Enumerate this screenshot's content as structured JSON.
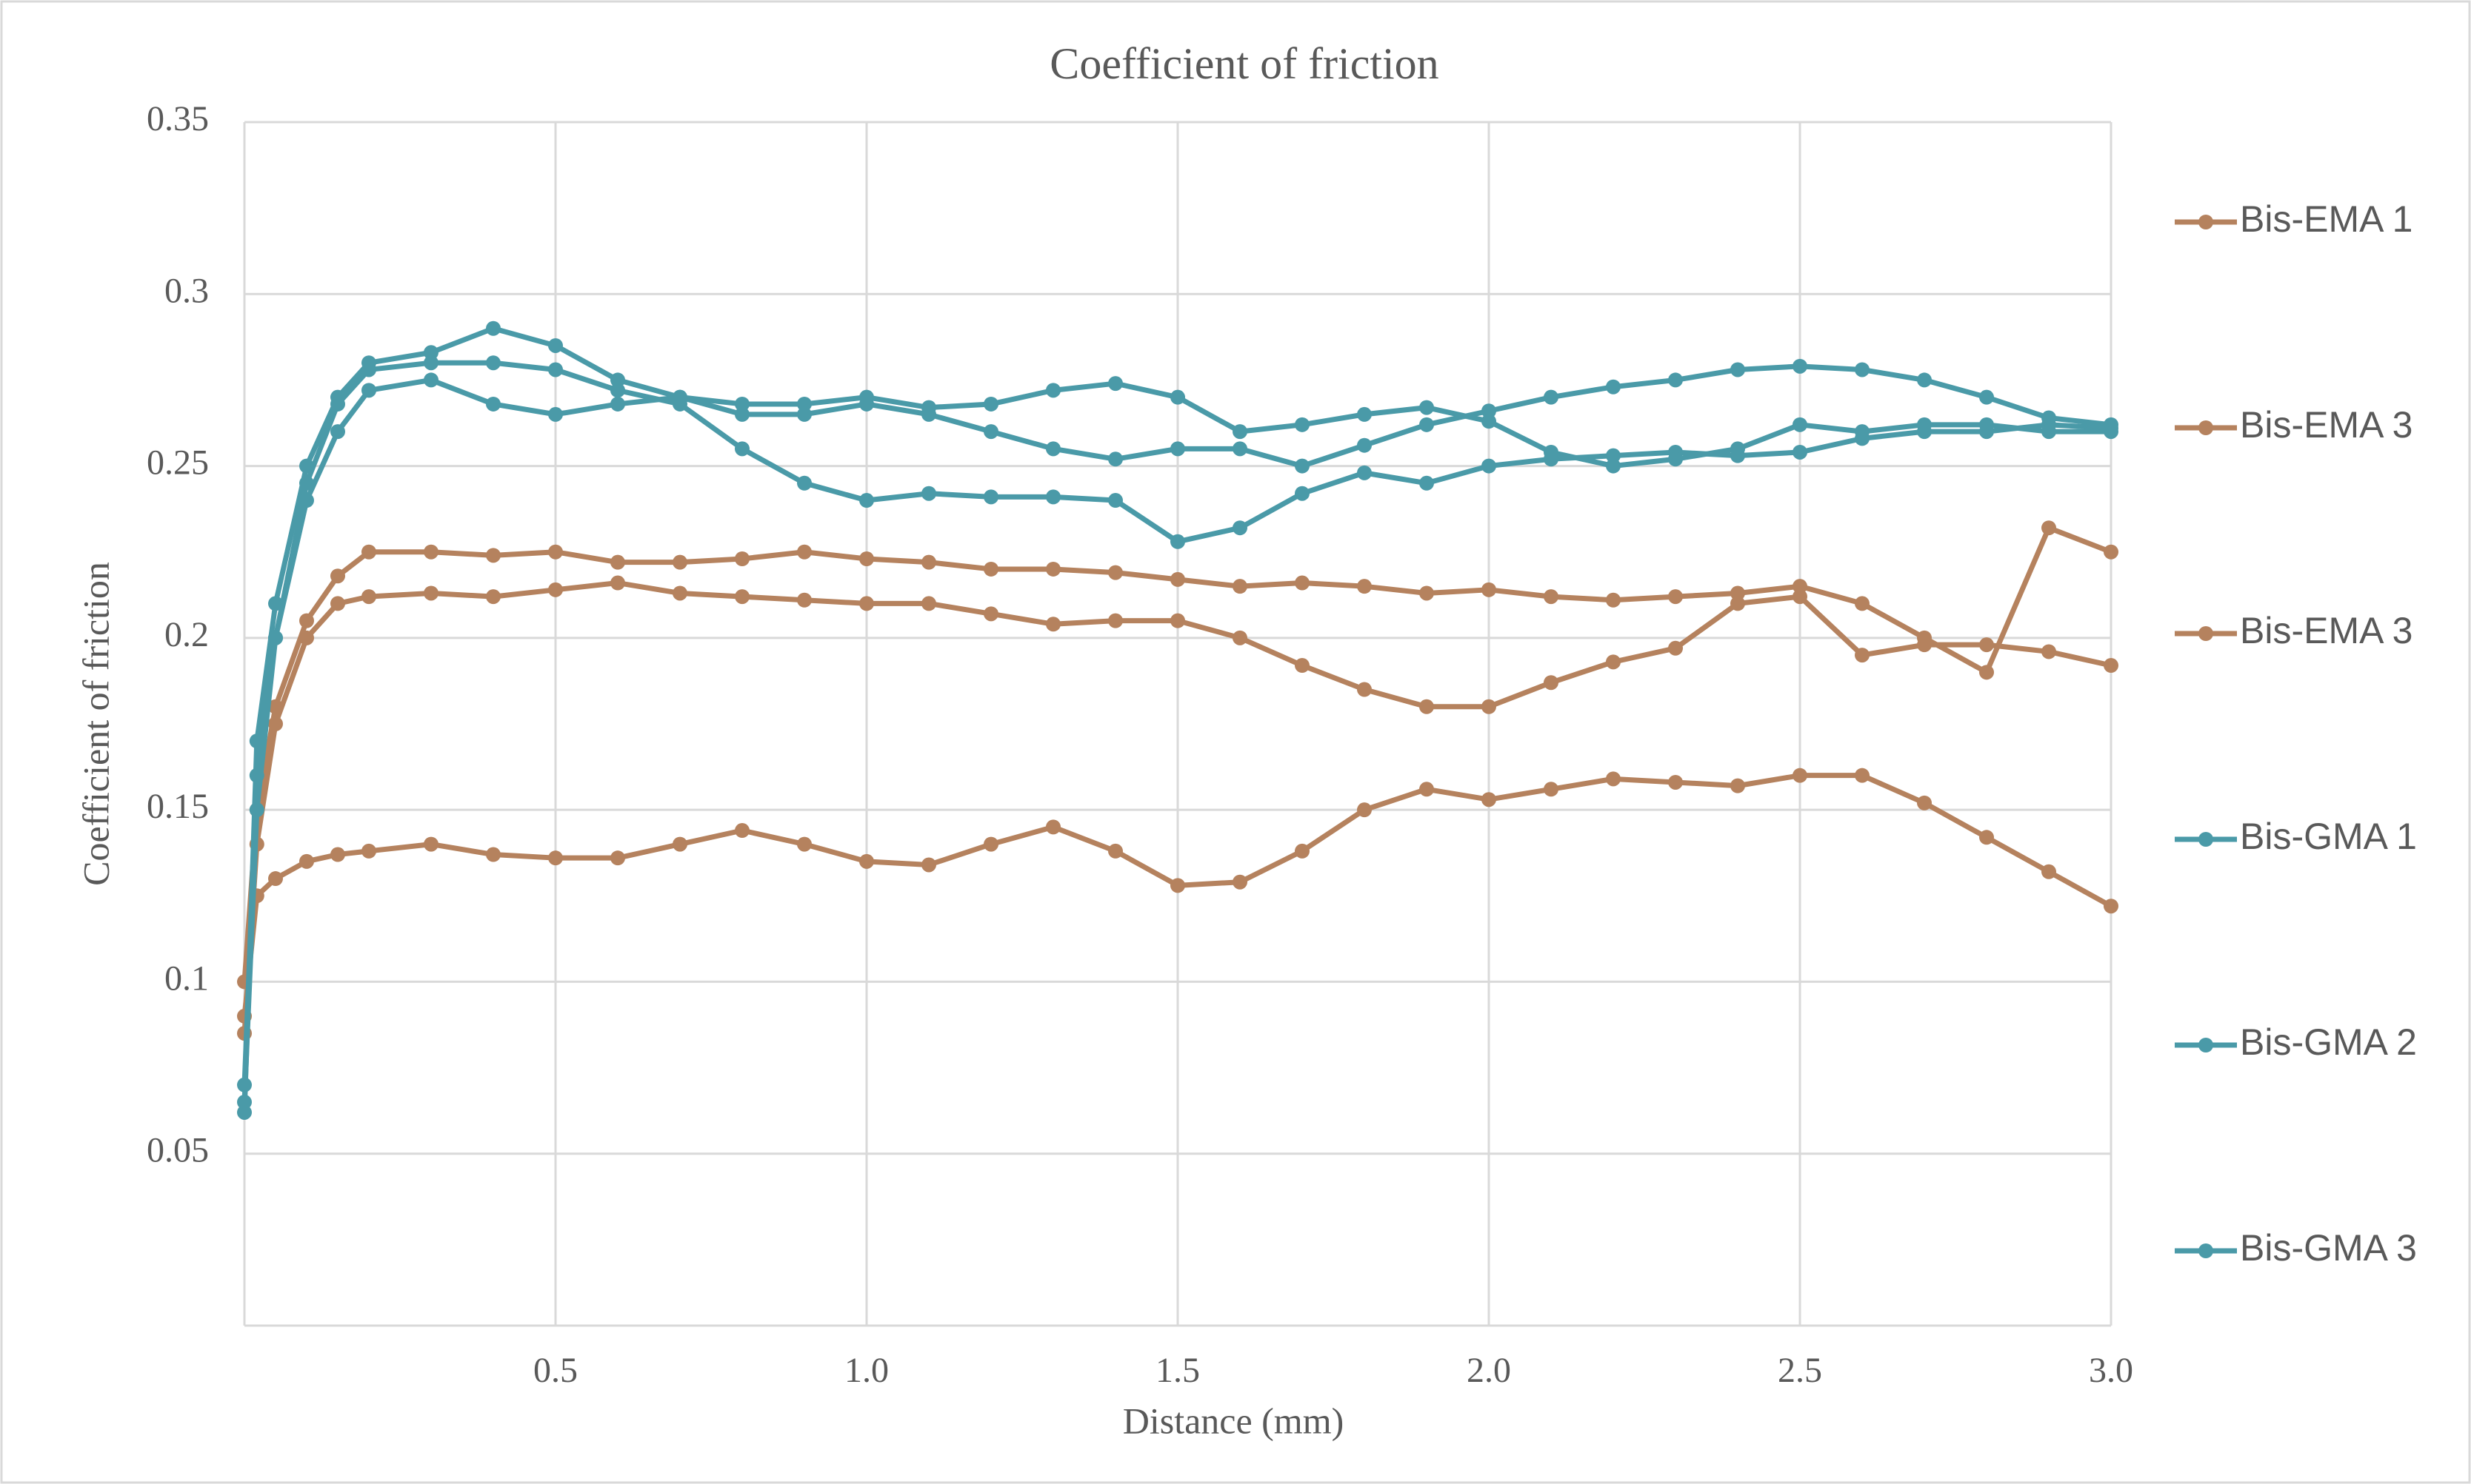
{
  "chart_data": {
    "type": "line",
    "title": "Coefficient of friction",
    "x_label": "Distance (mm)",
    "y_label": "Coefficient of friction",
    "xlim": [
      0,
      3
    ],
    "ylim": [
      0,
      0.35
    ],
    "xticks": [
      0.5,
      {
        "value": 1,
        "label": "1.0"
      },
      1.5,
      {
        "value": 2,
        "label": "2.0"
      },
      2.5,
      {
        "value": 3,
        "label": "3.0"
      }
    ],
    "yticks": [
      0.05,
      0.1,
      0.15,
      0.2,
      0.25,
      0.3,
      0.35
    ],
    "grid": true,
    "legend": "right",
    "x": [
      0,
      0.02,
      0.05,
      0.1,
      0.15,
      0.2,
      0.3,
      0.4,
      0.5,
      0.6,
      0.7,
      0.8,
      0.9,
      1.0,
      1.1,
      1.2,
      1.3,
      1.4,
      1.5,
      1.6,
      1.7,
      1.8,
      1.9,
      2.0,
      2.1,
      2.2,
      2.3,
      2.4,
      2.5,
      2.6,
      2.7,
      2.8,
      2.9,
      3.0
    ],
    "series": [
      {
        "name": "Bis-EMA 1",
        "color": "#b5825e",
        "values": [
          0.09,
          0.125,
          0.13,
          0.135,
          0.137,
          0.138,
          0.14,
          0.137,
          0.136,
          0.136,
          0.14,
          0.144,
          0.14,
          0.135,
          0.134,
          0.14,
          0.145,
          0.138,
          0.128,
          0.129,
          0.138,
          0.15,
          0.156,
          0.153,
          0.156,
          0.159,
          0.158,
          0.157,
          0.16,
          0.16,
          0.152,
          0.142,
          0.132,
          0.122
        ]
      },
      {
        "name": "Bis-EMA 3",
        "color": "#b5825e",
        "values": [
          0.1,
          0.15,
          0.18,
          0.205,
          0.218,
          0.225,
          0.225,
          0.224,
          0.225,
          0.222,
          0.222,
          0.223,
          0.225,
          0.223,
          0.222,
          0.22,
          0.22,
          0.219,
          0.217,
          0.215,
          0.216,
          0.215,
          0.213,
          0.214,
          0.212,
          0.211,
          0.212,
          0.213,
          0.215,
          0.21,
          0.2,
          0.19,
          0.232,
          0.225
        ]
      },
      {
        "name": "Bis-EMA 3",
        "color": "#b5825e",
        "values": [
          0.085,
          0.14,
          0.175,
          0.2,
          0.21,
          0.212,
          0.213,
          0.212,
          0.214,
          0.216,
          0.213,
          0.212,
          0.211,
          0.21,
          0.21,
          0.207,
          0.204,
          0.205,
          0.205,
          0.2,
          0.192,
          0.185,
          0.18,
          0.18,
          0.187,
          0.193,
          0.197,
          0.21,
          0.212,
          0.195,
          0.198,
          0.198,
          0.196,
          0.192
        ]
      },
      {
        "name": "Bis-GMA 1",
        "color": "#4a9aa8",
        "values": [
          0.062,
          0.17,
          0.21,
          0.25,
          0.27,
          0.28,
          0.283,
          0.29,
          0.285,
          0.275,
          0.27,
          0.265,
          0.265,
          0.268,
          0.265,
          0.26,
          0.255,
          0.252,
          0.255,
          0.255,
          0.25,
          0.256,
          0.262,
          0.266,
          0.27,
          0.273,
          0.275,
          0.278,
          0.279,
          0.278,
          0.275,
          0.27,
          0.264,
          0.262
        ]
      },
      {
        "name": "Bis-GMA 2",
        "color": "#4a9aa8",
        "values": [
          0.07,
          0.16,
          0.2,
          0.245,
          0.268,
          0.278,
          0.28,
          0.28,
          0.278,
          0.272,
          0.268,
          0.255,
          0.245,
          0.24,
          0.242,
          0.241,
          0.241,
          0.24,
          0.228,
          0.232,
          0.242,
          0.248,
          0.245,
          0.25,
          0.252,
          0.253,
          0.254,
          0.253,
          0.254,
          0.258,
          0.26,
          0.26,
          0.262,
          0.261
        ]
      },
      {
        "name": "Bis-GMA 3",
        "color": "#4a9aa8",
        "values": [
          0.065,
          0.15,
          0.2,
          0.24,
          0.26,
          0.272,
          0.275,
          0.268,
          0.265,
          0.268,
          0.27,
          0.268,
          0.268,
          0.27,
          0.267,
          0.268,
          0.272,
          0.274,
          0.27,
          0.26,
          0.262,
          0.265,
          0.267,
          0.263,
          0.254,
          0.25,
          0.252,
          0.255,
          0.262,
          0.26,
          0.262,
          0.262,
          0.26,
          0.26
        ]
      }
    ]
  }
}
